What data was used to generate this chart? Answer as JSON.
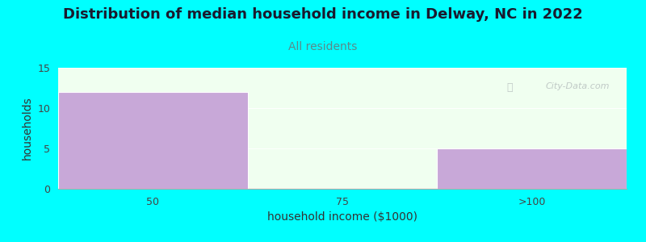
{
  "title": "Distribution of median household income in Delway, NC in 2022",
  "subtitle": "All residents",
  "xlabel": "household income ($1000)",
  "ylabel": "households",
  "background_color": "#00FFFF",
  "plot_bg_color": "#F0FFF0",
  "bar_color": "#C8A8D8",
  "categories": [
    "50",
    "75",
    ">100"
  ],
  "values": [
    12,
    0,
    5
  ],
  "ylim": [
    0,
    15
  ],
  "yticks": [
    0,
    5,
    10,
    15
  ],
  "title_fontsize": 13,
  "subtitle_fontsize": 10,
  "subtitle_color": "#5a8a8a",
  "axis_label_fontsize": 10,
  "tick_fontsize": 9,
  "watermark": "City-Data.com",
  "title_color": "#1a1a2e"
}
